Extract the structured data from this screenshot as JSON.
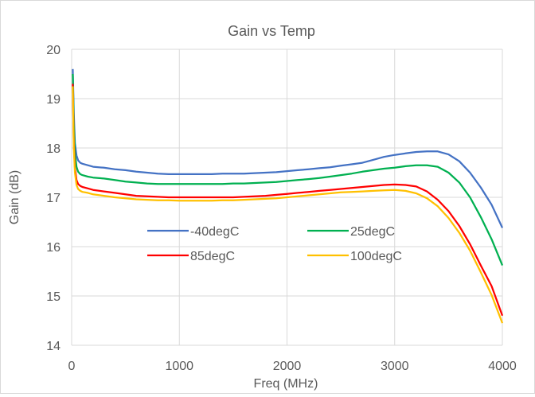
{
  "chart_data": {
    "type": "line",
    "title": "Gain vs Temp",
    "xlabel": "Freq (MHz)",
    "ylabel": "Gain (dB)",
    "xlim": [
      0,
      4000
    ],
    "ylim": [
      14,
      20
    ],
    "xticks": [
      0,
      1000,
      2000,
      3000,
      4000
    ],
    "yticks": [
      14,
      15,
      16,
      17,
      18,
      19,
      20
    ],
    "grid": true,
    "legend_position": "inside-bottom-center",
    "series": [
      {
        "name": "-40degC",
        "color": "#4472C4",
        "x": [
          10,
          20,
          30,
          45,
          60,
          80,
          100,
          150,
          200,
          300,
          400,
          500,
          600,
          700,
          800,
          900,
          1000,
          1100,
          1200,
          1300,
          1400,
          1500,
          1600,
          1700,
          1800,
          1900,
          2000,
          2100,
          2200,
          2300,
          2400,
          2500,
          2600,
          2700,
          2800,
          2900,
          3000,
          3100,
          3200,
          3300,
          3400,
          3500,
          3600,
          3700,
          3800,
          3900,
          4000
        ],
        "y": [
          19.6,
          18.7,
          18.1,
          17.85,
          17.75,
          17.7,
          17.68,
          17.65,
          17.62,
          17.6,
          17.57,
          17.55,
          17.52,
          17.5,
          17.48,
          17.47,
          17.47,
          17.47,
          17.47,
          17.47,
          17.48,
          17.48,
          17.48,
          17.49,
          17.5,
          17.51,
          17.53,
          17.55,
          17.57,
          17.59,
          17.61,
          17.64,
          17.67,
          17.7,
          17.76,
          17.82,
          17.86,
          17.89,
          17.92,
          17.93,
          17.93,
          17.87,
          17.73,
          17.5,
          17.2,
          16.85,
          16.38
        ]
      },
      {
        "name": "25degC",
        "color": "#00B050",
        "x": [
          10,
          20,
          30,
          45,
          60,
          80,
          100,
          150,
          200,
          300,
          400,
          500,
          600,
          700,
          800,
          900,
          1000,
          1100,
          1200,
          1300,
          1400,
          1500,
          1600,
          1700,
          1800,
          1900,
          2000,
          2100,
          2200,
          2300,
          2400,
          2500,
          2600,
          2700,
          2800,
          2900,
          3000,
          3100,
          3200,
          3300,
          3400,
          3500,
          3600,
          3700,
          3800,
          3900,
          4000
        ],
        "y": [
          19.5,
          18.5,
          17.9,
          17.62,
          17.52,
          17.47,
          17.45,
          17.42,
          17.4,
          17.38,
          17.35,
          17.32,
          17.3,
          17.28,
          17.27,
          17.27,
          17.27,
          17.27,
          17.27,
          17.27,
          17.27,
          17.28,
          17.28,
          17.29,
          17.3,
          17.31,
          17.33,
          17.35,
          17.37,
          17.39,
          17.42,
          17.45,
          17.48,
          17.52,
          17.55,
          17.58,
          17.6,
          17.63,
          17.65,
          17.65,
          17.62,
          17.5,
          17.3,
          17.0,
          16.6,
          16.15,
          15.62
        ]
      },
      {
        "name": "85degC",
        "color": "#FF0000",
        "x": [
          10,
          20,
          30,
          45,
          60,
          80,
          100,
          150,
          200,
          300,
          400,
          500,
          600,
          700,
          800,
          900,
          1000,
          1100,
          1200,
          1300,
          1400,
          1500,
          1600,
          1700,
          1800,
          1900,
          2000,
          2100,
          2200,
          2300,
          2400,
          2500,
          2600,
          2700,
          2800,
          2900,
          3000,
          3100,
          3200,
          3300,
          3400,
          3500,
          3600,
          3700,
          3800,
          3900,
          4000
        ],
        "y": [
          19.3,
          18.1,
          17.6,
          17.35,
          17.27,
          17.23,
          17.21,
          17.18,
          17.15,
          17.12,
          17.09,
          17.06,
          17.03,
          17.02,
          17.01,
          17.0,
          17.0,
          17.0,
          17.0,
          17.0,
          17.0,
          17.0,
          17.01,
          17.02,
          17.03,
          17.05,
          17.07,
          17.09,
          17.11,
          17.13,
          17.15,
          17.17,
          17.19,
          17.21,
          17.23,
          17.25,
          17.26,
          17.25,
          17.22,
          17.12,
          16.95,
          16.72,
          16.42,
          16.05,
          15.62,
          15.2,
          14.6
        ]
      },
      {
        "name": "100degC",
        "color": "#FFC000",
        "x": [
          10,
          20,
          30,
          45,
          60,
          80,
          100,
          150,
          200,
          300,
          400,
          500,
          600,
          700,
          800,
          900,
          1000,
          1100,
          1200,
          1300,
          1400,
          1500,
          1600,
          1700,
          1800,
          1900,
          2000,
          2100,
          2200,
          2300,
          2400,
          2500,
          2600,
          2700,
          2800,
          2900,
          3000,
          3100,
          3200,
          3300,
          3400,
          3500,
          3600,
          3700,
          3800,
          3900,
          4000
        ],
        "y": [
          19.25,
          18.0,
          17.5,
          17.25,
          17.17,
          17.13,
          17.11,
          17.09,
          17.06,
          17.03,
          17.0,
          16.98,
          16.96,
          16.95,
          16.94,
          16.94,
          16.93,
          16.93,
          16.93,
          16.93,
          16.94,
          16.94,
          16.95,
          16.96,
          16.97,
          16.98,
          17.0,
          17.02,
          17.04,
          17.06,
          17.08,
          17.1,
          17.11,
          17.12,
          17.13,
          17.14,
          17.15,
          17.13,
          17.08,
          16.98,
          16.82,
          16.58,
          16.28,
          15.92,
          15.48,
          15.02,
          14.45
        ]
      }
    ]
  }
}
